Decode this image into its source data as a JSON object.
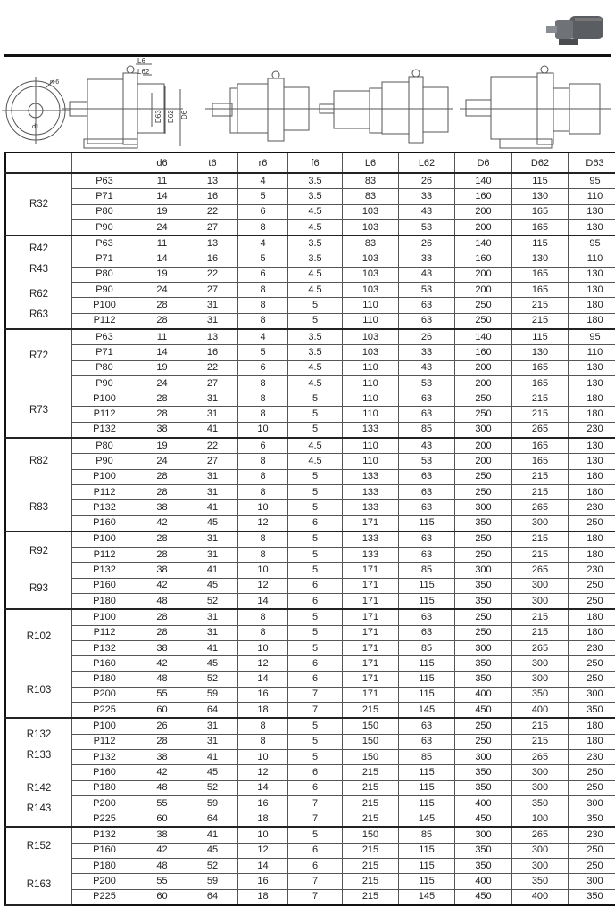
{
  "drawing_labels": {
    "l6": "L6",
    "l62": "L62",
    "d63": "D63",
    "d62": "D62",
    "d6": "D6",
    "n6": "n-6",
    "d1": "d1"
  },
  "table": {
    "headers": [
      "",
      "",
      "d6",
      "t6",
      "r6",
      "f6",
      "L6",
      "L62",
      "D6",
      "D62",
      "D63"
    ],
    "groups": [
      {
        "labels": [
          [
            "R32"
          ]
        ],
        "rows": [
          [
            "P63",
            "11",
            "13",
            "4",
            "3.5",
            "83",
            "26",
            "140",
            "115",
            "95"
          ],
          [
            "P71",
            "14",
            "16",
            "5",
            "3.5",
            "83",
            "33",
            "160",
            "130",
            "110"
          ],
          [
            "P80",
            "19",
            "22",
            "6",
            "4.5",
            "103",
            "43",
            "200",
            "165",
            "130"
          ],
          [
            "P90",
            "24",
            "27",
            "8",
            "4.5",
            "103",
            "53",
            "200",
            "165",
            "130"
          ]
        ]
      },
      {
        "labels": [
          [
            "R42",
            "R43"
          ],
          [
            "R62",
            "R63"
          ]
        ],
        "rows": [
          [
            "P63",
            "11",
            "13",
            "4",
            "3.5",
            "83",
            "26",
            "140",
            "115",
            "95"
          ],
          [
            "P71",
            "14",
            "16",
            "5",
            "3.5",
            "103",
            "33",
            "160",
            "130",
            "110"
          ],
          [
            "P80",
            "19",
            "22",
            "6",
            "4.5",
            "103",
            "43",
            "200",
            "165",
            "130"
          ],
          [
            "P90",
            "24",
            "27",
            "8",
            "4.5",
            "103",
            "53",
            "200",
            "165",
            "130"
          ],
          [
            "P100",
            "28",
            "31",
            "8",
            "5",
            "110",
            "63",
            "250",
            "215",
            "180"
          ],
          [
            "P112",
            "28",
            "31",
            "8",
            "5",
            "110",
            "63",
            "250",
            "215",
            "180"
          ]
        ]
      },
      {
        "labels": [
          [
            "R72"
          ],
          [
            "R73"
          ]
        ],
        "rows": [
          [
            "P63",
            "11",
            "13",
            "4",
            "3.5",
            "103",
            "26",
            "140",
            "115",
            "95"
          ],
          [
            "P71",
            "14",
            "16",
            "5",
            "3.5",
            "103",
            "33",
            "160",
            "130",
            "110"
          ],
          [
            "P80",
            "19",
            "22",
            "6",
            "4.5",
            "110",
            "43",
            "200",
            "165",
            "130"
          ],
          [
            "P90",
            "24",
            "27",
            "8",
            "4.5",
            "110",
            "53",
            "200",
            "165",
            "130"
          ],
          [
            "P100",
            "28",
            "31",
            "8",
            "5",
            "110",
            "63",
            "250",
            "215",
            "180"
          ],
          [
            "P112",
            "28",
            "31",
            "8",
            "5",
            "110",
            "63",
            "250",
            "215",
            "180"
          ],
          [
            "P132",
            "38",
            "41",
            "10",
            "5",
            "133",
            "85",
            "300",
            "265",
            "230"
          ]
        ]
      },
      {
        "labels": [
          [
            "R82"
          ],
          [
            "R83"
          ]
        ],
        "rows": [
          [
            "P80",
            "19",
            "22",
            "6",
            "4.5",
            "110",
            "43",
            "200",
            "165",
            "130"
          ],
          [
            "P90",
            "24",
            "27",
            "8",
            "4.5",
            "110",
            "53",
            "200",
            "165",
            "130"
          ],
          [
            "P100",
            "28",
            "31",
            "8",
            "5",
            "133",
            "63",
            "250",
            "215",
            "180"
          ],
          [
            "P112",
            "28",
            "31",
            "8",
            "5",
            "133",
            "63",
            "250",
            "215",
            "180"
          ],
          [
            "P132",
            "38",
            "41",
            "10",
            "5",
            "133",
            "63",
            "300",
            "265",
            "230"
          ],
          [
            "P160",
            "42",
            "45",
            "12",
            "6",
            "171",
            "115",
            "350",
            "300",
            "250"
          ]
        ]
      },
      {
        "labels": [
          [
            "R92"
          ],
          [
            "R93"
          ]
        ],
        "rows": [
          [
            "P100",
            "28",
            "31",
            "8",
            "5",
            "133",
            "63",
            "250",
            "215",
            "180"
          ],
          [
            "P112",
            "28",
            "31",
            "8",
            "5",
            "133",
            "63",
            "250",
            "215",
            "180"
          ],
          [
            "P132",
            "38",
            "41",
            "10",
            "5",
            "171",
            "85",
            "300",
            "265",
            "230"
          ],
          [
            "P160",
            "42",
            "45",
            "12",
            "6",
            "171",
            "115",
            "350",
            "300",
            "250"
          ],
          [
            "P180",
            "48",
            "52",
            "14",
            "6",
            "171",
            "115",
            "350",
            "300",
            "250"
          ]
        ]
      },
      {
        "labels": [
          [
            "R102"
          ],
          [
            "R103"
          ]
        ],
        "rows": [
          [
            "P100",
            "28",
            "31",
            "8",
            "5",
            "171",
            "63",
            "250",
            "215",
            "180"
          ],
          [
            "P112",
            "28",
            "31",
            "8",
            "5",
            "171",
            "63",
            "250",
            "215",
            "180"
          ],
          [
            "P132",
            "38",
            "41",
            "10",
            "5",
            "171",
            "85",
            "300",
            "265",
            "230"
          ],
          [
            "P160",
            "42",
            "45",
            "12",
            "6",
            "171",
            "115",
            "350",
            "300",
            "250"
          ],
          [
            "P180",
            "48",
            "52",
            "14",
            "6",
            "171",
            "115",
            "350",
            "300",
            "250"
          ],
          [
            "P200",
            "55",
            "59",
            "16",
            "7",
            "171",
            "115",
            "400",
            "350",
            "300"
          ],
          [
            "P225",
            "60",
            "64",
            "18",
            "7",
            "215",
            "145",
            "450",
            "400",
            "350"
          ]
        ]
      },
      {
        "labels": [
          [
            "R132",
            "R133"
          ],
          [
            "R142",
            "R143"
          ]
        ],
        "rows": [
          [
            "P100",
            "26",
            "31",
            "8",
            "5",
            "150",
            "63",
            "250",
            "215",
            "180"
          ],
          [
            "P112",
            "28",
            "31",
            "8",
            "5",
            "150",
            "63",
            "250",
            "215",
            "180"
          ],
          [
            "P132",
            "38",
            "41",
            "10",
            "5",
            "150",
            "85",
            "300",
            "265",
            "230"
          ],
          [
            "P160",
            "42",
            "45",
            "12",
            "6",
            "215",
            "115",
            "350",
            "300",
            "250"
          ],
          [
            "P180",
            "48",
            "52",
            "14",
            "6",
            "215",
            "115",
            "350",
            "300",
            "250"
          ],
          [
            "P200",
            "55",
            "59",
            "16",
            "7",
            "215",
            "115",
            "400",
            "350",
            "300"
          ],
          [
            "P225",
            "60",
            "64",
            "18",
            "7",
            "215",
            "145",
            "450",
            "100",
            "350"
          ]
        ]
      },
      {
        "labels": [
          [
            "R152"
          ],
          [
            "R163"
          ]
        ],
        "rows": [
          [
            "P132",
            "38",
            "41",
            "10",
            "5",
            "150",
            "85",
            "300",
            "265",
            "230"
          ],
          [
            "P160",
            "42",
            "45",
            "12",
            "6",
            "215",
            "115",
            "350",
            "300",
            "250"
          ],
          [
            "P180",
            "48",
            "52",
            "14",
            "6",
            "215",
            "115",
            "350",
            "300",
            "250"
          ],
          [
            "P200",
            "55",
            "59",
            "16",
            "7",
            "215",
            "115",
            "400",
            "350",
            "300"
          ],
          [
            "P225",
            "60",
            "64",
            "18",
            "7",
            "215",
            "145",
            "450",
            "400",
            "350"
          ]
        ]
      }
    ]
  }
}
